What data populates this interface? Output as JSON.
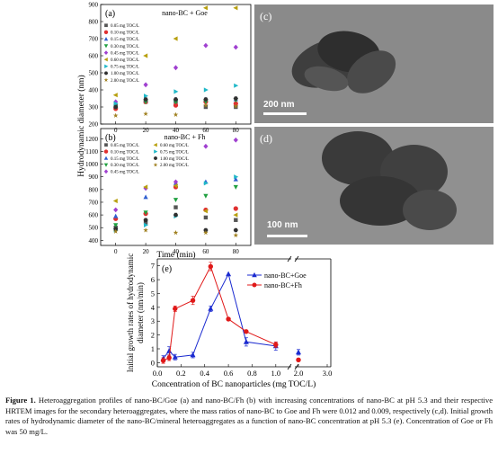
{
  "panel_a": {
    "letter": "(a)",
    "title": "nano-BC + Goe",
    "legend": [
      "0.05 mg TOC/L",
      "0.10 mg TOC/L",
      "0.15 mg TOC/L",
      "0.30 mg TOC/L",
      "0.45 mg TOC/L",
      "0.60 mg TOC/L",
      "0.75 mg TOC/L",
      "1.00 mg TOC/L",
      "2.00 mg TOC/L"
    ]
  },
  "panel_b": {
    "letter": "(b)",
    "title": "nano-BC + Fh",
    "legend_col1": [
      "0.05 mg TOC/L",
      "0.10 mg TOC/L",
      "0.15 mg TOC/L",
      "0.30 mg TOC/L",
      "0.45 mg TOC/L"
    ],
    "legend_col2": [
      "0.60 mg TOC/L",
      "0.75 mg TOC/L",
      "1.00 mg TOC/L",
      "2.00 mg TOC/L"
    ]
  },
  "panel_c": {
    "letter": "(c)",
    "scale": "200 nm"
  },
  "panel_d": {
    "letter": "(d)",
    "scale": "100 nm"
  },
  "panel_e": {
    "letter": "(e)"
  },
  "markers": [
    "square",
    "circle",
    "triangle-up",
    "triangle-down",
    "diamond",
    "triangle-left",
    "triangle-right",
    "hexagon",
    "star"
  ],
  "series_colors": [
    "#555555",
    "#e03030",
    "#3060d0",
    "#20a040",
    "#a040d0",
    "#b8a010",
    "#20b8c8",
    "#303030",
    "#a08020"
  ],
  "caption": {
    "label": "Figure 1.",
    "text": " Heteroaggregation profiles of nano-BC/Goe (a) and nano-BC/Fh (b) with increasing concentrations of nano-BC at pH 5.3 and their respective HRTEM images for the secondary heteroaggregates, where the mass ratios of nano-BC to Goe and Fh were 0.012 and 0.009, respectively (c,d). Initial growth rates of hydrodynamic diameter of the nano-BC/mineral heteroaggregates as a function of nano-BC concentration at pH 5.3 (e). Concentration of Goe or Fh was 50 mg/L."
  },
  "chart_data": [
    {
      "id": "a",
      "type": "scatter",
      "title": "nano-BC + Goe",
      "xlabel": "Time (min)",
      "ylabel": "Hydrodynamic diameter (nm)",
      "x": [
        0,
        20,
        40,
        60,
        80
      ],
      "xlim": [
        -10,
        90
      ],
      "ylim": [
        200,
        900
      ],
      "yticks": [
        200,
        300,
        400,
        500,
        600,
        700,
        800,
        900
      ],
      "series": [
        {
          "name": "0.05 mg TOC/L",
          "values": [
            310,
            330,
            330,
            300,
            300
          ]
        },
        {
          "name": "0.10 mg TOC/L",
          "values": [
            290,
            330,
            310,
            330,
            320
          ]
        },
        {
          "name": "0.15 mg TOC/L",
          "values": [
            305,
            340,
            345,
            345,
            345
          ]
        },
        {
          "name": "0.30 mg TOC/L",
          "values": [
            300,
            330,
            330,
            330,
            340
          ]
        },
        {
          "name": "0.45 mg TOC/L",
          "values": [
            330,
            430,
            530,
            660,
            650
          ]
        },
        {
          "name": "0.60 mg TOC/L",
          "values": [
            370,
            600,
            700,
            880,
            880
          ]
        },
        {
          "name": "0.75 mg TOC/L",
          "values": [
            320,
            365,
            390,
            400,
            425
          ]
        },
        {
          "name": "1.00 mg TOC/L",
          "values": [
            300,
            345,
            345,
            345,
            350
          ]
        },
        {
          "name": "2.00 mg TOC/L",
          "values": [
            250,
            260,
            255,
            310,
            305
          ]
        }
      ]
    },
    {
      "id": "b",
      "type": "scatter",
      "title": "nano-BC + Fh",
      "xlabel": "Time (min)",
      "ylabel": "Hydrodynamic diameter (nm)",
      "x": [
        0,
        20,
        40,
        60,
        80
      ],
      "xlim": [
        -10,
        90
      ],
      "ylim": [
        360,
        1280
      ],
      "yticks": [
        400,
        500,
        600,
        700,
        800,
        900,
        1000,
        1100,
        1200
      ],
      "series": [
        {
          "name": "0.05 mg TOC/L",
          "values": [
            500,
            540,
            660,
            580,
            560
          ]
        },
        {
          "name": "0.10 mg TOC/L",
          "values": [
            570,
            610,
            820,
            640,
            650
          ]
        },
        {
          "name": "0.15 mg TOC/L",
          "values": [
            590,
            740,
            850,
            860,
            880
          ]
        },
        {
          "name": "0.30 mg TOC/L",
          "values": [
            520,
            620,
            720,
            750,
            820
          ]
        },
        {
          "name": "0.45 mg TOC/L",
          "values": [
            640,
            810,
            860,
            1140,
            1190
          ]
        },
        {
          "name": "0.60 mg TOC/L",
          "values": [
            710,
            820,
            830,
            630,
            600
          ]
        },
        {
          "name": "0.75 mg TOC/L",
          "values": [
            480,
            520,
            590,
            850,
            900
          ]
        },
        {
          "name": "1.00 mg TOC/L",
          "values": [
            490,
            560,
            600,
            480,
            480
          ]
        },
        {
          "name": "2.00 mg TOC/L",
          "values": [
            470,
            480,
            460,
            460,
            440
          ]
        }
      ]
    },
    {
      "id": "e",
      "type": "line",
      "xlabel": "Concentration of BC nanoparticles (mg TOC/L)",
      "ylabel_line1": "Initial growth rates of hydrodynamic",
      "ylabel_line2": "diameter (nm/min)",
      "xlim": [
        0,
        1.1
      ],
      "ylim": [
        -0.3,
        7.5
      ],
      "xticks": [
        0.0,
        0.2,
        0.4,
        0.6,
        0.8,
        1.0
      ],
      "xtick_labels": [
        "0.0",
        "0.2",
        "0.4",
        "0.6",
        "0.8",
        "1.0"
      ],
      "break_tick_labels": [
        "2.0",
        "3.0"
      ],
      "yticks": [
        0,
        1,
        2,
        3,
        4,
        5,
        6,
        7
      ],
      "legend_position": "right",
      "series": [
        {
          "name": "nano-BC+Goe",
          "color": "#1a2ad0",
          "marker": "triangle",
          "x": [
            0.05,
            0.1,
            0.15,
            0.3,
            0.45,
            0.6,
            0.75,
            1.0,
            2.0
          ],
          "y": [
            0.3,
            0.85,
            0.4,
            0.55,
            3.9,
            6.4,
            1.5,
            1.2,
            0.75
          ],
          "err": [
            0.2,
            0.3,
            0.2,
            0.2,
            0.2,
            0.0,
            0.3,
            0.3,
            0.2
          ]
        },
        {
          "name": "nano-BC+Fh",
          "color": "#e01818",
          "marker": "circle",
          "x": [
            0.05,
            0.1,
            0.15,
            0.3,
            0.45,
            0.6,
            0.75,
            1.0,
            2.0
          ],
          "y": [
            0.15,
            0.35,
            3.9,
            4.5,
            6.95,
            3.15,
            2.25,
            1.3,
            0.2
          ],
          "err": [
            0.2,
            0.2,
            0.2,
            0.3,
            0.3,
            0.0,
            0.0,
            0.2,
            0.1
          ]
        }
      ]
    }
  ]
}
